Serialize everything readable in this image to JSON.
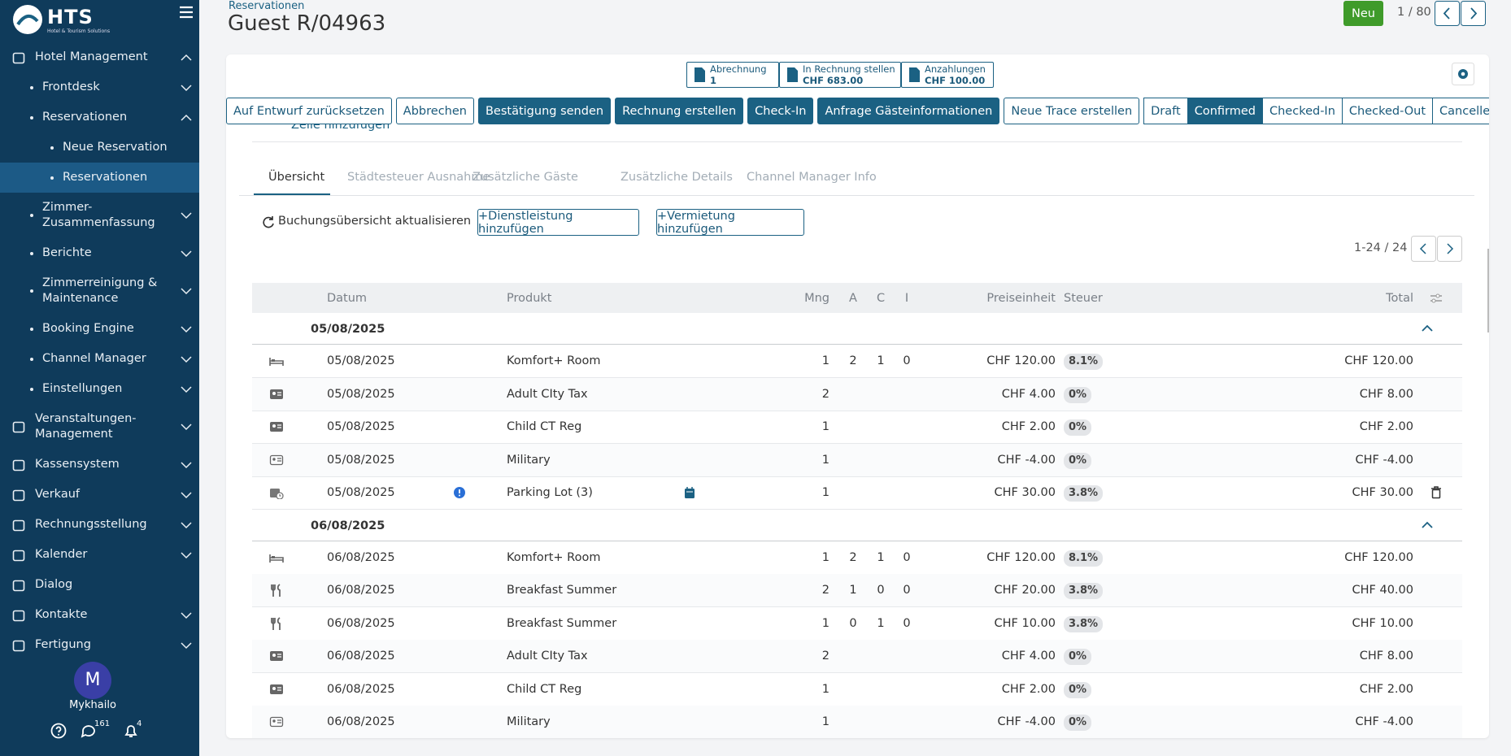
{
  "sidebar": {
    "logo": "HTS",
    "logo_sub": "Hotel & Tourism Solutions",
    "items": [
      {
        "label": "Hotel Management",
        "level": 0,
        "chevron": "up"
      },
      {
        "label": "Frontdesk",
        "level": 1,
        "chevron": "down"
      },
      {
        "label": "Reservationen",
        "level": 1,
        "chevron": "up"
      },
      {
        "label": "Neue Reservation",
        "level": 2
      },
      {
        "label": "Reservationen",
        "level": 2,
        "active": true
      },
      {
        "label": "Zimmer-Zusammenfassung",
        "level": 1,
        "chevron": "down"
      },
      {
        "label": "Berichte",
        "level": 1,
        "chevron": "down"
      },
      {
        "label": "Zimmerreinigung & Maintenance",
        "level": 1,
        "chevron": "down"
      },
      {
        "label": "Booking Engine",
        "level": 1,
        "chevron": "down"
      },
      {
        "label": "Channel Manager",
        "level": 1,
        "chevron": "down"
      },
      {
        "label": "Einstellungen",
        "level": 1,
        "chevron": "down"
      },
      {
        "label": "Veranstaltungen-Management",
        "level": 0,
        "chevron": "down"
      },
      {
        "label": "Kassensystem",
        "level": 0,
        "chevron": "down"
      },
      {
        "label": "Verkauf",
        "level": 0,
        "chevron": "down"
      },
      {
        "label": "Rechnungsstellung",
        "level": 0,
        "chevron": "down"
      },
      {
        "label": "Kalender",
        "level": 0,
        "chevron": "down"
      },
      {
        "label": "Dialog",
        "level": 0
      },
      {
        "label": "Kontakte",
        "level": 0,
        "chevron": "down"
      },
      {
        "label": "Fertigung",
        "level": 0,
        "chevron": "down"
      }
    ],
    "avatar": "M",
    "user": "Mykhailo",
    "messages": "161",
    "notifications": "4"
  },
  "header": {
    "breadcrumb": "Reservationen",
    "title": "Guest R/04963",
    "new_button": "Neu",
    "pager": "1 / 80"
  },
  "smart_buttons": [
    {
      "label": "Abrechnung",
      "value": "1"
    },
    {
      "label": "In Rechnung stellen",
      "value": "CHF 683.00"
    },
    {
      "label": "Anzahlungen",
      "value": "CHF 100.00"
    }
  ],
  "actions": [
    {
      "label": "Auf Entwurf zurücksetzen",
      "primary": false
    },
    {
      "label": "Abbrechen",
      "primary": false
    },
    {
      "label": "Bestätigung senden",
      "primary": true
    },
    {
      "label": "Rechnung erstellen",
      "primary": true
    },
    {
      "label": "Check-In",
      "primary": true
    },
    {
      "label": "Anfrage Gästeinformationen",
      "primary": true
    },
    {
      "label": "Neue Trace erstellen",
      "primary": false
    }
  ],
  "statuses": [
    {
      "label": "Draft"
    },
    {
      "label": "Confirmed",
      "active": true
    },
    {
      "label": "Checked-In"
    },
    {
      "label": "Checked-Out"
    },
    {
      "label": "Cancelled"
    }
  ],
  "partial_text": "Zeile hinzufügen",
  "tabs": [
    {
      "label": "Übersicht",
      "active": true
    },
    {
      "label": "Städtesteuer Ausnahme"
    },
    {
      "label": "Zusätzliche Gäste"
    },
    {
      "label": "Zusätzliche Details"
    },
    {
      "label": "Channel Manager Info"
    }
  ],
  "toolbar": {
    "refresh": "Buchungsübersicht aktualisieren",
    "add_service": "+Dienstleistung hinzufügen",
    "add_rental": "+Vermietung hinzufügen",
    "pager": "1-24 / 24"
  },
  "table": {
    "columns": [
      "Datum",
      "Produkt",
      "Mng",
      "A",
      "C",
      "I",
      "Preiseinheit",
      "Steuer",
      "Total"
    ],
    "groups": [
      {
        "date": "05/08/2025",
        "rows": [
          {
            "icon": "bed",
            "cells": [
              "05/08/2025",
              "Komfort+ Room",
              1,
              2,
              1,
              0,
              "CHF 120.00",
              "8.1%",
              "CHF 120.00"
            ]
          },
          {
            "icon": "card",
            "cells": [
              "05/08/2025",
              "Adult CIty Tax",
              2,
              null,
              null,
              null,
              "CHF 4.00",
              "0%",
              "CHF 8.00"
            ]
          },
          {
            "icon": "card",
            "cells": [
              "05/08/2025",
              "Child CT Reg",
              1,
              null,
              null,
              null,
              "CHF 2.00",
              "0%",
              "CHF 2.00"
            ]
          },
          {
            "icon": "card-outline",
            "cells": [
              "05/08/2025",
              "Military",
              1,
              null,
              null,
              null,
              "CHF -4.00",
              "0%",
              "CHF -4.00"
            ]
          },
          {
            "icon": "parking",
            "info": true,
            "calendar": true,
            "delete": true,
            "cells": [
              "05/08/2025",
              "Parking Lot (3)",
              1,
              null,
              null,
              null,
              "CHF 30.00",
              "3.8%",
              "CHF 30.00"
            ]
          }
        ]
      },
      {
        "date": "06/08/2025",
        "rows": [
          {
            "icon": "bed",
            "cells": [
              "06/08/2025",
              "Komfort+ Room",
              1,
              2,
              1,
              0,
              "CHF 120.00",
              "8.1%",
              "CHF 120.00"
            ]
          },
          {
            "icon": "food",
            "cells": [
              "06/08/2025",
              "Breakfast Summer",
              2,
              1,
              0,
              0,
              "CHF 20.00",
              "3.8%",
              "CHF 40.00"
            ]
          },
          {
            "icon": "food",
            "cells": [
              "06/08/2025",
              "Breakfast Summer",
              1,
              0,
              1,
              0,
              "CHF 10.00",
              "3.8%",
              "CHF 10.00"
            ]
          },
          {
            "icon": "card",
            "cells": [
              "06/08/2025",
              "Adult CIty Tax",
              2,
              null,
              null,
              null,
              "CHF 4.00",
              "0%",
              "CHF 8.00"
            ]
          },
          {
            "icon": "card",
            "cells": [
              "06/08/2025",
              "Child CT Reg",
              1,
              null,
              null,
              null,
              "CHF 2.00",
              "0%",
              "CHF 2.00"
            ]
          },
          {
            "icon": "card-outline",
            "cells": [
              "06/08/2025",
              "Military",
              1,
              null,
              null,
              null,
              "CHF -4.00",
              "0%",
              "CHF -4.00"
            ]
          }
        ]
      }
    ]
  }
}
